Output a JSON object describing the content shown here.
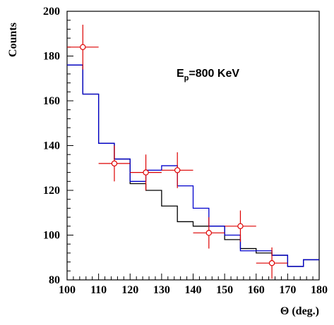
{
  "chart_data": {
    "type": "histogram",
    "xlabel": "Θ (deg.)",
    "ylabel": "Counts",
    "xlim": [
      100,
      180
    ],
    "ylim": [
      80,
      200
    ],
    "x_ticks": [
      100,
      110,
      120,
      130,
      140,
      150,
      160,
      170,
      180
    ],
    "y_ticks": [
      80,
      100,
      120,
      140,
      160,
      180,
      200
    ],
    "annotation": {
      "main": "E",
      "sub": "p",
      "rest": "=800 KeV"
    },
    "bin_edges": [
      100,
      105,
      110,
      115,
      120,
      125,
      130,
      135,
      140,
      145,
      150,
      155,
      160,
      165,
      170,
      175,
      180
    ],
    "series": [
      {
        "color": "#000000",
        "values": [
          176,
          163,
          141,
          134,
          123,
          120,
          113,
          106,
          104,
          104,
          98,
          94,
          92,
          91,
          86,
          89
        ]
      },
      {
        "color": "#0000cc",
        "values": [
          176,
          163,
          141,
          134,
          124,
          129,
          131,
          122,
          112,
          104,
          100,
          93,
          93,
          91,
          86,
          89
        ]
      }
    ],
    "points": {
      "color": "#dd0000",
      "data": [
        {
          "x": 105,
          "y": 184,
          "xerr": 5,
          "yerr": 10
        },
        {
          "x": 115,
          "y": 132,
          "xerr": 5,
          "yerr": 8
        },
        {
          "x": 125,
          "y": 128,
          "xerr": 5,
          "yerr": 8
        },
        {
          "x": 135,
          "y": 129,
          "xerr": 5,
          "yerr": 8
        },
        {
          "x": 145,
          "y": 101,
          "xerr": 5,
          "yerr": 7
        },
        {
          "x": 155,
          "y": 104,
          "xerr": 5,
          "yerr": 7
        },
        {
          "x": 165,
          "y": 87.5,
          "xerr": 5,
          "yerr": 7
        }
      ]
    }
  }
}
